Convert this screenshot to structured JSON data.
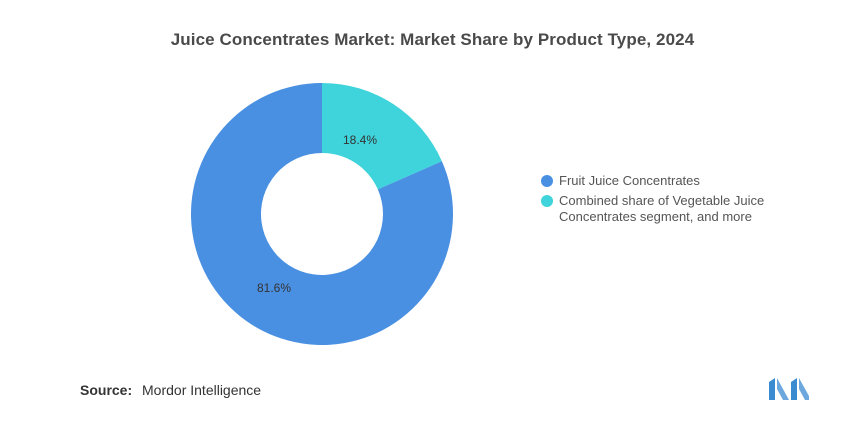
{
  "title": "Juice Concentrates Market: Market Share by Product Type, 2024",
  "source": {
    "label": "Source:",
    "value": "Mordor Intelligence"
  },
  "colors": {
    "fruit": "#4a90e2",
    "vegetable": "#3fd3db",
    "logo": "#3b8bd1"
  },
  "chart_data": {
    "type": "pie",
    "donut": true,
    "title": "Juice Concentrates Market: Market Share by Product Type, 2024",
    "slices": [
      {
        "label": "Combined share of Vegetable Juice Concentrates segment, and more",
        "value": 18.4,
        "display": "18.4%",
        "color": "#3fd3db"
      },
      {
        "label": "Fruit Juice Concentrates",
        "value": 81.6,
        "display": "81.6%",
        "color": "#4a90e2"
      }
    ],
    "legend": {
      "position": "right",
      "entries": [
        "Fruit Juice Concentrates",
        "Combined share of Vegetable Juice Concentrates segment, and more"
      ]
    }
  }
}
